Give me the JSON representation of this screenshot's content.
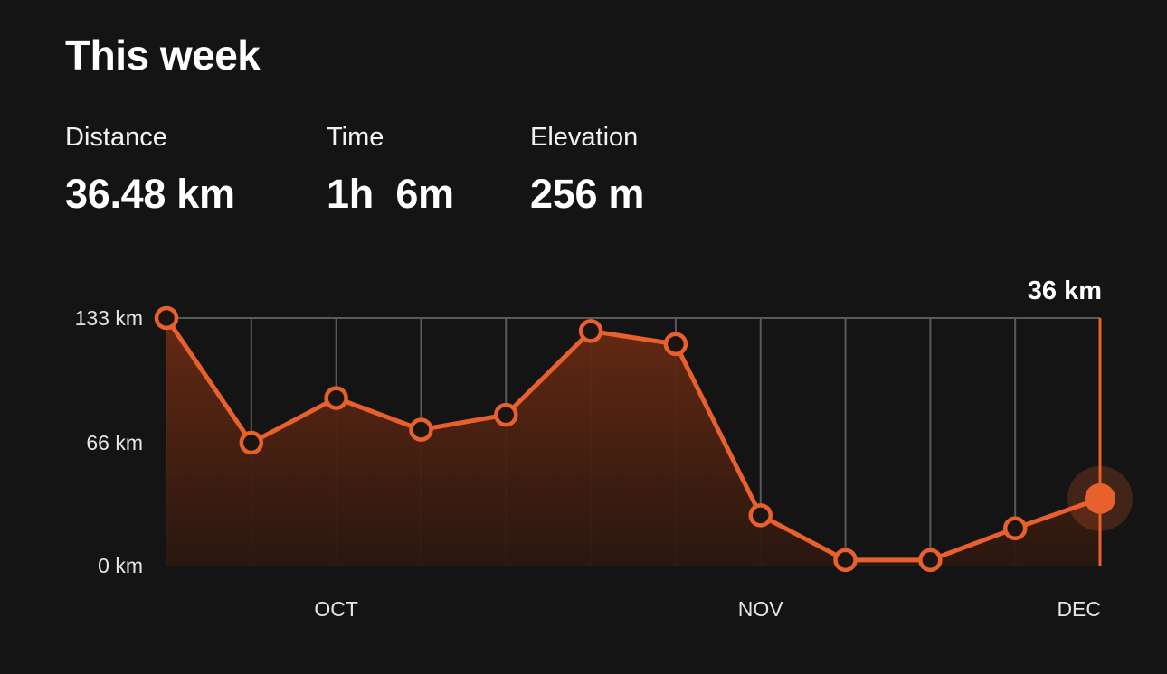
{
  "header": {
    "title": "This week"
  },
  "stats": {
    "distance": {
      "label": "Distance",
      "value": "36.48 km"
    },
    "time": {
      "label": "Time",
      "value": "1h  6m"
    },
    "elevation": {
      "label": "Elevation",
      "value": "256 m"
    }
  },
  "colors": {
    "background": "#141414",
    "accent": "#e8612c",
    "grid": "#5a5a5a"
  },
  "chart_data": {
    "type": "area",
    "title": "",
    "xlabel": "",
    "ylabel": "",
    "ylim": [
      0,
      133
    ],
    "yticks": [
      {
        "value": 0,
        "label": "0 km"
      },
      {
        "value": 66,
        "label": "66 km"
      },
      {
        "value": 133,
        "label": "133 km"
      }
    ],
    "x": [
      0,
      1,
      2,
      3,
      4,
      5,
      6,
      7,
      8,
      9,
      10,
      11
    ],
    "xticks": [
      {
        "index": 2,
        "label": "OCT"
      },
      {
        "index": 7,
        "label": "NOV"
      },
      {
        "index": 11,
        "label": "DEC"
      }
    ],
    "series": [
      {
        "values": [
          133,
          66,
          90,
          73,
          81,
          126,
          119,
          27,
          3,
          3,
          20,
          36
        ]
      }
    ],
    "selected": {
      "index": 11,
      "label": "36 km"
    },
    "grid": true,
    "legend": "none"
  }
}
